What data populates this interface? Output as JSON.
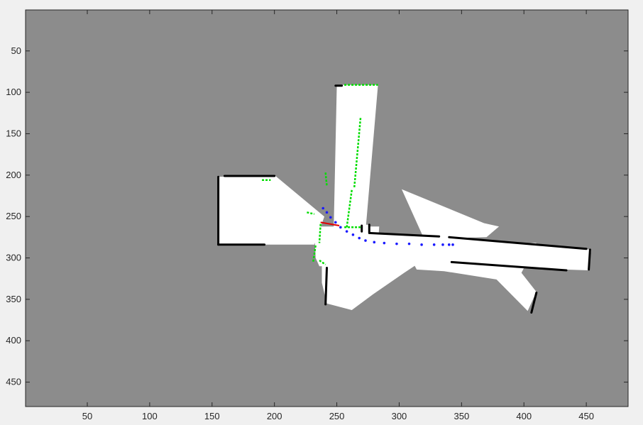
{
  "figure": {
    "colors": {
      "background": "#f0f0f0",
      "unknown": "#8c8c8c",
      "free": "#ffffff",
      "occupied": "#000000",
      "scan_hits": "#00dd00",
      "trajectory": "#1a1aff",
      "heading": "#e00000"
    }
  },
  "chart_data": {
    "type": "heatmap",
    "title": "",
    "xlabel": "",
    "ylabel": "",
    "xlim": [
      0.5,
      483.5
    ],
    "ylim": [
      0.5,
      479.5
    ],
    "y_direction": "reversed",
    "grid": false,
    "x_ticks": [
      50,
      100,
      150,
      200,
      250,
      300,
      350,
      400,
      450
    ],
    "y_ticks": [
      50,
      100,
      150,
      200,
      250,
      300,
      350,
      400,
      450
    ],
    "free_regions": [
      [
        [
          250,
          91
        ],
        [
          283,
          91
        ],
        [
          273,
          268
        ],
        [
          257,
          268
        ],
        [
          254,
          300
        ],
        [
          247,
          300
        ]
      ],
      [
        [
          269,
          268
        ],
        [
          270,
          260
        ],
        [
          276,
          260
        ],
        [
          277,
          270
        ],
        [
          339,
          274
        ],
        [
          454,
          290
        ],
        [
          452,
          315
        ],
        [
          250,
          305
        ],
        [
          245,
          270
        ]
      ],
      [
        [
          155,
          202
        ],
        [
          200,
          200
        ],
        [
          240,
          250
        ],
        [
          232,
          284
        ],
        [
          155,
          284
        ]
      ],
      [
        [
          232,
          262
        ],
        [
          284,
          262
        ],
        [
          282,
          310
        ],
        [
          236,
          310
        ],
        [
          233,
          300
        ]
      ],
      [
        [
          238,
          305
        ],
        [
          317,
          305
        ],
        [
          304,
          318
        ],
        [
          279,
          344
        ],
        [
          262,
          363
        ],
        [
          242,
          355
        ],
        [
          238,
          330
        ]
      ],
      [
        [
          303,
          282
        ],
        [
          410,
          282
        ],
        [
          405,
          298
        ],
        [
          398,
          318
        ],
        [
          410,
          341
        ],
        [
          403,
          364
        ],
        [
          378,
          326
        ],
        [
          336,
          316
        ],
        [
          314,
          314
        ]
      ],
      [
        [
          302,
          217
        ],
        [
          368,
          258
        ],
        [
          380,
          262
        ],
        [
          370,
          275
        ],
        [
          320,
          277
        ]
      ],
      [
        [
          335,
          260
        ],
        [
          352,
          264
        ],
        [
          352,
          276
        ],
        [
          335,
          276
        ]
      ]
    ],
    "occupied_segments": [
      [
        [
          249,
          92
        ],
        [
          254,
          92
        ]
      ],
      [
        [
          155,
          202
        ],
        [
          155,
          284
        ]
      ],
      [
        [
          155,
          284
        ],
        [
          192,
          284
        ]
      ],
      [
        [
          160,
          201
        ],
        [
          200,
          201
        ]
      ],
      [
        [
          270,
          268
        ],
        [
          270,
          261
        ]
      ],
      [
        [
          276,
          260
        ],
        [
          276,
          270
        ]
      ],
      [
        [
          277,
          270
        ],
        [
          332,
          274
        ]
      ],
      [
        [
          340,
          275
        ],
        [
          450,
          289
        ]
      ],
      [
        [
          453,
          290
        ],
        [
          452,
          314
        ]
      ],
      [
        [
          342,
          305
        ],
        [
          434,
          315
        ]
      ],
      [
        [
          242,
          312
        ],
        [
          241,
          356
        ]
      ],
      [
        [
          410,
          342
        ],
        [
          406,
          366
        ]
      ]
    ],
    "scan_hits": [
      [
        [
          256,
          91
        ],
        [
          283,
          91
        ]
      ],
      [
        [
          269,
          131
        ],
        [
          264,
          215
        ]
      ],
      [
        [
          262,
          218
        ],
        [
          258,
          263
        ]
      ],
      [
        [
          256,
          263
        ],
        [
          269,
          263
        ]
      ],
      [
        [
          241,
          197
        ],
        [
          242,
          213
        ]
      ],
      [
        [
          237,
          259
        ],
        [
          236,
          282
        ]
      ],
      [
        [
          233,
          285
        ],
        [
          231,
          305
        ]
      ],
      [
        [
          236,
          303
        ],
        [
          241,
          308
        ]
      ],
      [
        [
          190,
          206
        ],
        [
          197,
          206
        ]
      ],
      [
        [
          226,
          245
        ],
        [
          232,
          247
        ]
      ]
    ],
    "trajectory": {
      "x": [
        239,
        242,
        245,
        249,
        253,
        258,
        263,
        268,
        273,
        280,
        288,
        298,
        308,
        318,
        328,
        335,
        340,
        343
      ],
      "y": [
        240,
        245,
        251,
        257,
        263,
        268,
        272,
        276,
        279,
        281,
        282,
        283,
        283,
        284,
        284,
        284,
        284,
        284
      ]
    },
    "heading": {
      "x": [
        237,
        252
      ],
      "y": [
        257,
        261
      ]
    }
  }
}
